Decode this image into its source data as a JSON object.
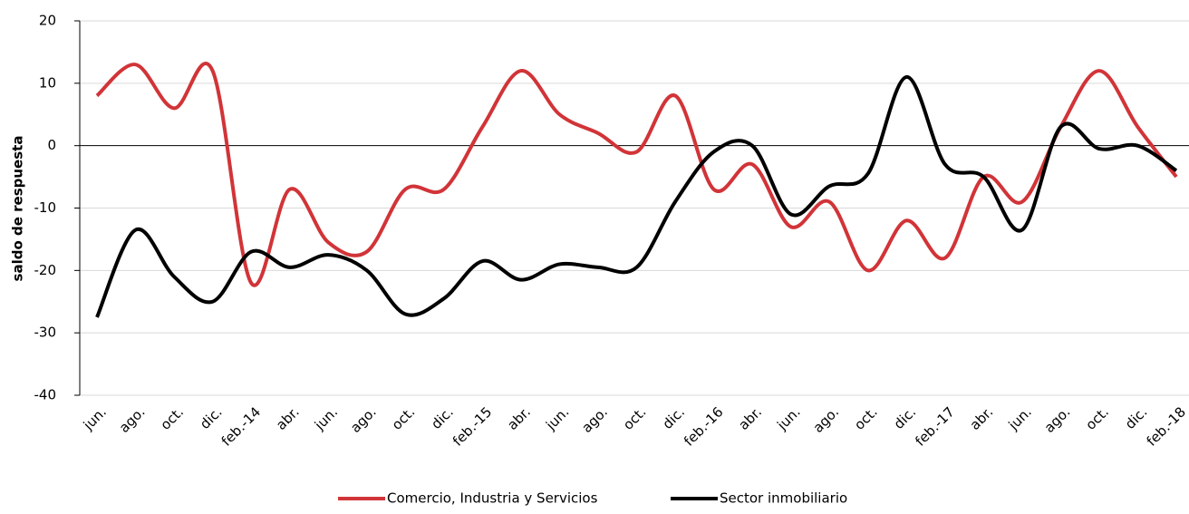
{
  "chart_data": {
    "type": "line",
    "y_label": "saldo de respuesta",
    "categories": [
      "jun.",
      "ago.",
      "oct.",
      "dic.",
      "feb.-14",
      "abr.",
      "jun.",
      "ago.",
      "oct.",
      "dic.",
      "feb.-15",
      "abr.",
      "jun.",
      "ago.",
      "oct.",
      "dic.",
      "feb.-16",
      "abr.",
      "jun.",
      "ago.",
      "oct.",
      "dic.",
      "feb.-17",
      "abr.",
      "jun.",
      "ago.",
      "oct.",
      "dic.",
      "feb.-18"
    ],
    "series": [
      {
        "name": "Comercio, Industria y Servicios",
        "color": "#d13438",
        "values": [
          8,
          13,
          6,
          12,
          -22,
          -7,
          -15.5,
          -17,
          -7,
          -7,
          3,
          12,
          5,
          2,
          -1,
          8,
          -7,
          -3,
          -13,
          -9,
          -20,
          -12,
          -18,
          -5,
          -9,
          3,
          12,
          3,
          -5
        ]
      },
      {
        "name": "Sector inmobiliario",
        "color": "#000000",
        "values": [
          -27.5,
          -13.5,
          -21,
          -25,
          -17,
          -19.5,
          -17.5,
          -20,
          -27,
          -24.5,
          -18.5,
          -21.5,
          -19,
          -19.5,
          -19.5,
          -9,
          -1,
          0,
          -11,
          -6.5,
          -4.5,
          11,
          -3,
          -5,
          -13.5,
          3,
          -0.5,
          0,
          -4
        ]
      }
    ],
    "ylim": [
      -40,
      20
    ],
    "yticks": [
      20,
      10,
      0,
      -10,
      -20,
      -30,
      -40
    ],
    "grid": true,
    "legend": "bottom"
  }
}
